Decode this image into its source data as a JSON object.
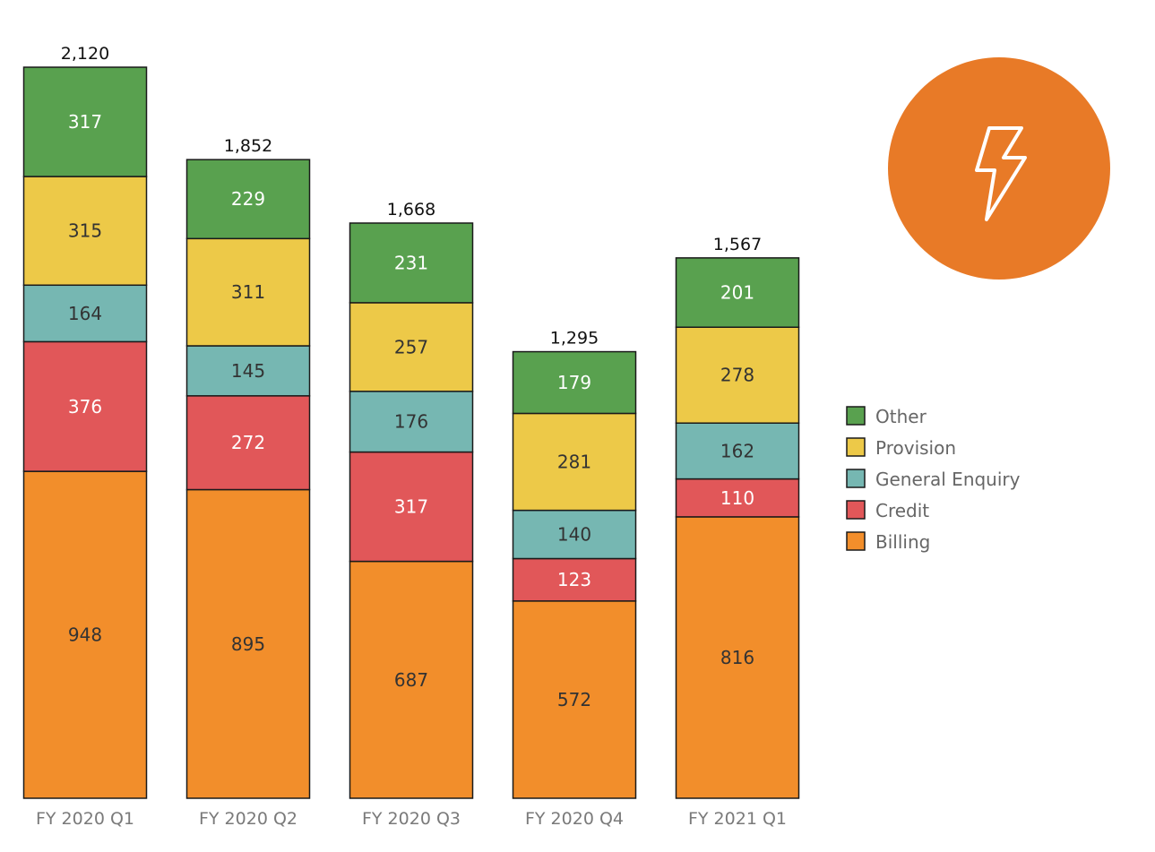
{
  "chart_data": {
    "type": "bar",
    "stacked": true,
    "categories": [
      "FY 2020 Q1",
      "FY 2020 Q2",
      "FY 2020 Q3",
      "FY 2020 Q4",
      "FY 2021 Q1"
    ],
    "totals": [
      "2,120",
      "1,852",
      "1,668",
      "1,295",
      "1,567"
    ],
    "series": [
      {
        "name": "Billing",
        "color": "#F28E2B",
        "text_color": "#333333",
        "values": [
          948,
          895,
          687,
          572,
          816
        ]
      },
      {
        "name": "Credit",
        "color": "#E15759",
        "text_color": "#ffffff",
        "values": [
          376,
          272,
          317,
          123,
          110
        ]
      },
      {
        "name": "General Enquiry",
        "color": "#76B7B2",
        "text_color": "#333333",
        "values": [
          164,
          145,
          176,
          140,
          162
        ]
      },
      {
        "name": "Provision",
        "color": "#EDC948",
        "text_color": "#333333",
        "values": [
          315,
          311,
          257,
          281,
          278
        ]
      },
      {
        "name": "Other",
        "color": "#59A14F",
        "text_color": "#ffffff",
        "values": [
          317,
          229,
          231,
          179,
          201
        ]
      }
    ],
    "legend": {
      "placement": "right",
      "order": [
        "Other",
        "Provision",
        "General Enquiry",
        "Credit",
        "Billing"
      ]
    },
    "grid": false,
    "ylim": [
      0,
      2120
    ]
  },
  "badge": {
    "icon": "lightning-bolt-icon",
    "color": "#E87A27"
  }
}
